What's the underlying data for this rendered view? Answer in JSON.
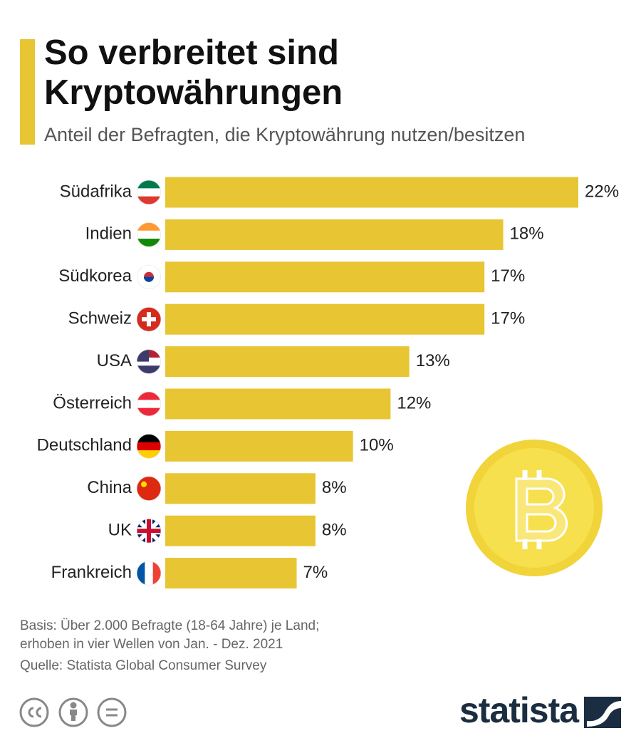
{
  "chart_data": {
    "type": "bar",
    "title": "So verbreitet sind Kryptowährungen",
    "subtitle": "Anteil der Befragten, die Kryptowährung nutzen/besitzen",
    "categories": [
      "Südafrika",
      "Indien",
      "Südkorea",
      "Schweiz",
      "USA",
      "Österreich",
      "Deutschland",
      "China",
      "UK",
      "Frankreich"
    ],
    "values": [
      22,
      18,
      17,
      17,
      13,
      12,
      10,
      8,
      8,
      7
    ],
    "value_labels": [
      "22%",
      "18%",
      "17%",
      "17%",
      "13%",
      "12%",
      "10%",
      "8%",
      "8%",
      "7%"
    ],
    "color": "#e8c532",
    "notes": [
      "Basis: Über 2.000 Befragte (18-64 Jahre) je Land;",
      "erhoben in vier Wellen von Jan. - Dez. 2021"
    ],
    "source": "Quelle: Statista Global Consumer Survey"
  },
  "logo": "statista"
}
